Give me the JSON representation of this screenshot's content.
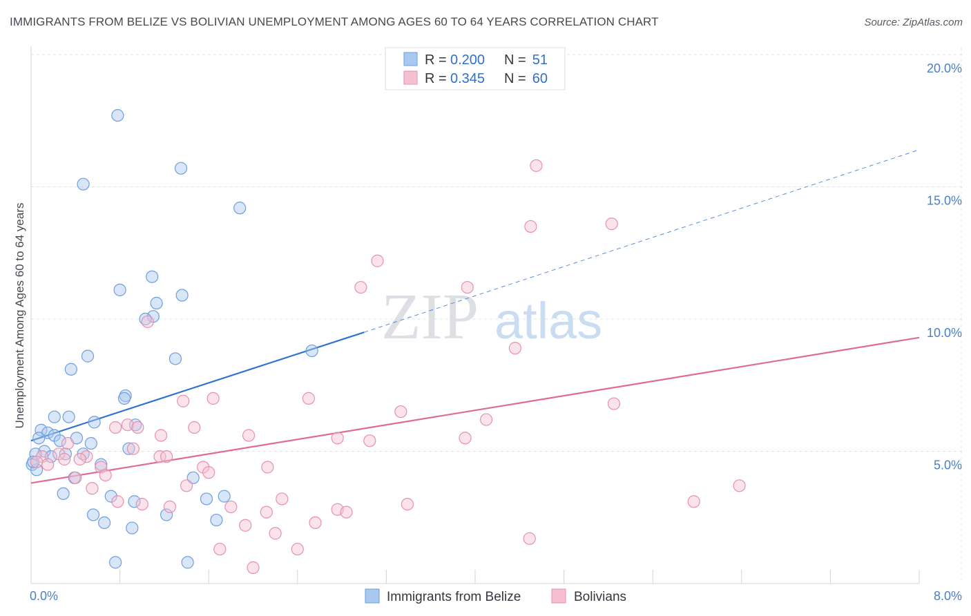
{
  "header": {
    "title": "IMMIGRANTS FROM BELIZE VS BOLIVIAN UNEMPLOYMENT AMONG AGES 60 TO 64 YEARS CORRELATION CHART",
    "source": "Source: ZipAtlas.com"
  },
  "watermark": {
    "zip": "ZIP",
    "atlas": "atlas"
  },
  "legend_top": {
    "r_label": "R =",
    "n_label": "N =",
    "rows": [
      {
        "r": "0.200",
        "n": "51"
      },
      {
        "r": "0.345",
        "n": "60"
      }
    ]
  },
  "colors": {
    "blue_fill": "#a8c8f0",
    "blue_stroke": "#6d9ede",
    "blue_line": "#2f72d0",
    "pink_fill": "#f6c0d2",
    "pink_stroke": "#e690ad",
    "pink_line": "#e06a95"
  },
  "chart_data": {
    "type": "scatter",
    "ylabel": "Unemployment Among Ages 60 to 64 years",
    "xlim": [
      0,
      8
    ],
    "ylim": [
      0,
      20
    ],
    "x_tick_labels": [
      {
        "value": 0,
        "label": "0.0%"
      },
      {
        "value": 8,
        "label": "8.0%"
      }
    ],
    "y_tick_labels": [
      {
        "value": 5,
        "label": "5.0%"
      },
      {
        "value": 10,
        "label": "10.0%"
      },
      {
        "value": 15,
        "label": "15.0%"
      },
      {
        "value": 20,
        "label": "20.0%"
      }
    ],
    "grid": true,
    "legend_position": "top-center",
    "series": [
      {
        "name": "Immigrants from Belize",
        "r": 0.2,
        "n": 51,
        "trend": {
          "x0": 0.0,
          "y0": 5.4,
          "x1": 3.0,
          "y1": 9.5,
          "dashed_to_x": 8.0,
          "dashed_to_y": 16.4
        },
        "points": [
          [
            0.78,
            17.7
          ],
          [
            0.47,
            15.1
          ],
          [
            1.35,
            15.7
          ],
          [
            1.88,
            14.2
          ],
          [
            0.8,
            11.1
          ],
          [
            1.09,
            11.6
          ],
          [
            1.36,
            10.9
          ],
          [
            1.13,
            10.6
          ],
          [
            1.1,
            10.1
          ],
          [
            1.03,
            10.0
          ],
          [
            2.53,
            8.8
          ],
          [
            0.51,
            8.6
          ],
          [
            1.3,
            8.5
          ],
          [
            0.36,
            8.1
          ],
          [
            0.85,
            7.1
          ],
          [
            0.84,
            7.0
          ],
          [
            0.57,
            6.1
          ],
          [
            0.34,
            6.3
          ],
          [
            0.21,
            6.3
          ],
          [
            0.94,
            6.0
          ],
          [
            0.09,
            5.8
          ],
          [
            0.15,
            5.7
          ],
          [
            0.21,
            5.6
          ],
          [
            0.41,
            5.5
          ],
          [
            0.07,
            5.5
          ],
          [
            0.26,
            5.4
          ],
          [
            0.54,
            5.3
          ],
          [
            0.88,
            5.1
          ],
          [
            0.12,
            5.0
          ],
          [
            0.31,
            4.9
          ],
          [
            0.47,
            4.9
          ],
          [
            0.18,
            4.8
          ],
          [
            0.01,
            4.5
          ],
          [
            0.63,
            4.5
          ],
          [
            0.39,
            4.0
          ],
          [
            1.46,
            4.0
          ],
          [
            0.29,
            3.4
          ],
          [
            0.72,
            3.3
          ],
          [
            0.93,
            3.1
          ],
          [
            1.58,
            3.2
          ],
          [
            1.74,
            3.3
          ],
          [
            0.56,
            2.6
          ],
          [
            0.66,
            2.3
          ],
          [
            1.22,
            2.6
          ],
          [
            1.67,
            2.4
          ],
          [
            0.91,
            2.1
          ],
          [
            0.76,
            0.8
          ],
          [
            1.41,
            0.8
          ],
          [
            0.05,
            4.3
          ],
          [
            0.04,
            4.9
          ],
          [
            0.02,
            4.6
          ]
        ]
      },
      {
        "name": "Bolivians",
        "r": 0.345,
        "n": 60,
        "trend": {
          "x0": 0.0,
          "y0": 3.8,
          "x1": 8.0,
          "y1": 9.3
        },
        "points": [
          [
            4.55,
            15.8
          ],
          [
            4.5,
            13.5
          ],
          [
            5.23,
            13.6
          ],
          [
            3.12,
            12.2
          ],
          [
            2.97,
            11.2
          ],
          [
            3.93,
            11.2
          ],
          [
            1.05,
            9.9
          ],
          [
            4.36,
            8.9
          ],
          [
            1.37,
            6.9
          ],
          [
            1.64,
            7.0
          ],
          [
            2.5,
            7.0
          ],
          [
            3.33,
            6.5
          ],
          [
            5.25,
            6.8
          ],
          [
            4.1,
            6.2
          ],
          [
            0.87,
            6.0
          ],
          [
            0.76,
            5.9
          ],
          [
            0.96,
            5.9
          ],
          [
            1.47,
            5.9
          ],
          [
            1.17,
            5.6
          ],
          [
            1.96,
            5.6
          ],
          [
            2.76,
            5.5
          ],
          [
            3.05,
            5.4
          ],
          [
            3.91,
            5.5
          ],
          [
            0.33,
            5.3
          ],
          [
            0.92,
            5.1
          ],
          [
            0.25,
            4.9
          ],
          [
            0.5,
            4.8
          ],
          [
            0.44,
            4.7
          ],
          [
            0.3,
            4.7
          ],
          [
            1.16,
            4.8
          ],
          [
            1.22,
            4.8
          ],
          [
            0.1,
            4.8
          ],
          [
            0.15,
            4.5
          ],
          [
            0.63,
            4.4
          ],
          [
            1.55,
            4.4
          ],
          [
            2.13,
            4.4
          ],
          [
            0.67,
            4.1
          ],
          [
            1.6,
            4.2
          ],
          [
            0.4,
            4.0
          ],
          [
            1.4,
            3.7
          ],
          [
            0.55,
            3.6
          ],
          [
            2.26,
            3.2
          ],
          [
            0.78,
            3.1
          ],
          [
            1.0,
            3.0
          ],
          [
            1.25,
            2.9
          ],
          [
            1.8,
            2.9
          ],
          [
            2.12,
            2.7
          ],
          [
            2.76,
            2.8
          ],
          [
            2.84,
            2.7
          ],
          [
            3.39,
            3.0
          ],
          [
            5.97,
            3.1
          ],
          [
            6.38,
            3.7
          ],
          [
            1.93,
            2.2
          ],
          [
            2.2,
            1.9
          ],
          [
            2.56,
            2.3
          ],
          [
            4.49,
            1.7
          ],
          [
            1.7,
            1.3
          ],
          [
            2.4,
            1.3
          ],
          [
            2.0,
            0.6
          ],
          [
            0.05,
            4.6
          ]
        ]
      }
    ]
  }
}
